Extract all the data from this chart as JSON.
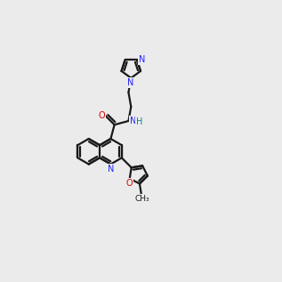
{
  "bg_color": "#ebebeb",
  "bond_color": "#1a1a1a",
  "N_color": "#2222ff",
  "O_color": "#dd0000",
  "H_color": "#008888",
  "lw": 1.6,
  "r6": 0.48,
  "r5": 0.36
}
